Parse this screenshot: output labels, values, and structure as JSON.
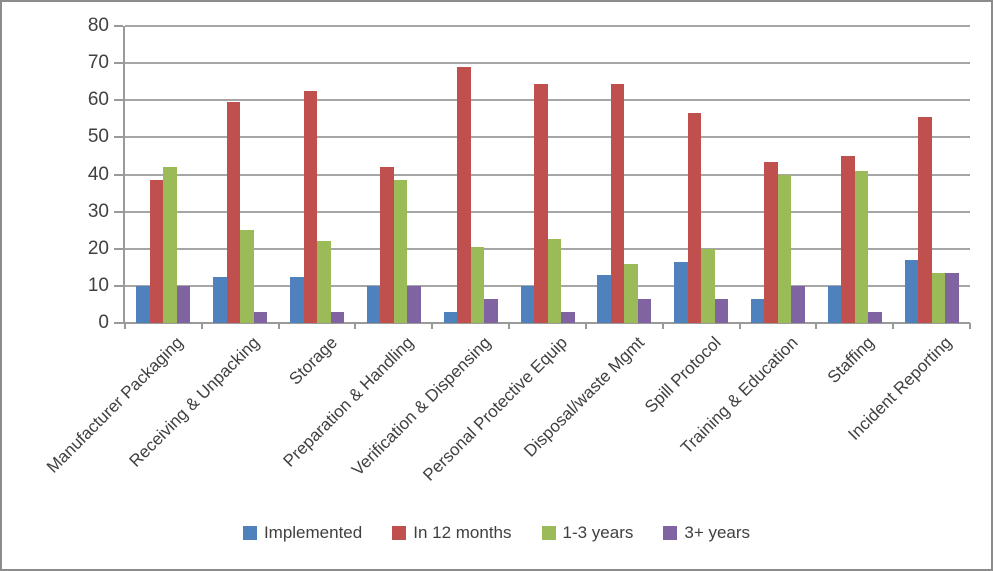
{
  "chart_data": {
    "type": "bar",
    "title": "",
    "xlabel": "",
    "ylabel": "",
    "categories": [
      "Manufacturer Packaging",
      "Receiving & Unpacking",
      "Storage",
      "Preparation & Handling",
      "Verification & Dispensing",
      "Personal Protective Equip",
      "Disposal/waste Mgmt",
      "Spill Protocol",
      "Training & Education",
      "Staffing",
      "Incident Reporting"
    ],
    "series": [
      {
        "name": "Implemented",
        "color": "#4F81BD",
        "values": [
          10,
          12.5,
          12.5,
          10,
          3,
          10,
          13,
          16.5,
          6.5,
          10,
          17
        ]
      },
      {
        "name": "In 12 months",
        "color": "#C0504D",
        "values": [
          38.5,
          59.5,
          62.5,
          42,
          69,
          64.5,
          64.5,
          56.5,
          43.5,
          45,
          55.5
        ]
      },
      {
        "name": "1-3 years",
        "color": "#9BBB59",
        "values": [
          42,
          25,
          22,
          38.5,
          20.5,
          22.5,
          16,
          20,
          40,
          41,
          13.5
        ]
      },
      {
        "name": "3+ years",
        "color": "#8064A2",
        "values": [
          10,
          3,
          3,
          10,
          6.5,
          3,
          6.5,
          6.5,
          10,
          3,
          13.5
        ]
      }
    ],
    "ylim": [
      0,
      80
    ],
    "ytick_step": 10,
    "ytick_labels": [
      "0",
      "10",
      "20",
      "30",
      "40",
      "50",
      "60",
      "70",
      "80"
    ],
    "grid": true,
    "legend_position": "bottom"
  },
  "style": {
    "gridline_color": "#A6A6A6",
    "axis_color": "#9A9A9A",
    "text_color": "#404040",
    "frame_color": "#8C8C8C",
    "background": "#FFFFFF"
  }
}
